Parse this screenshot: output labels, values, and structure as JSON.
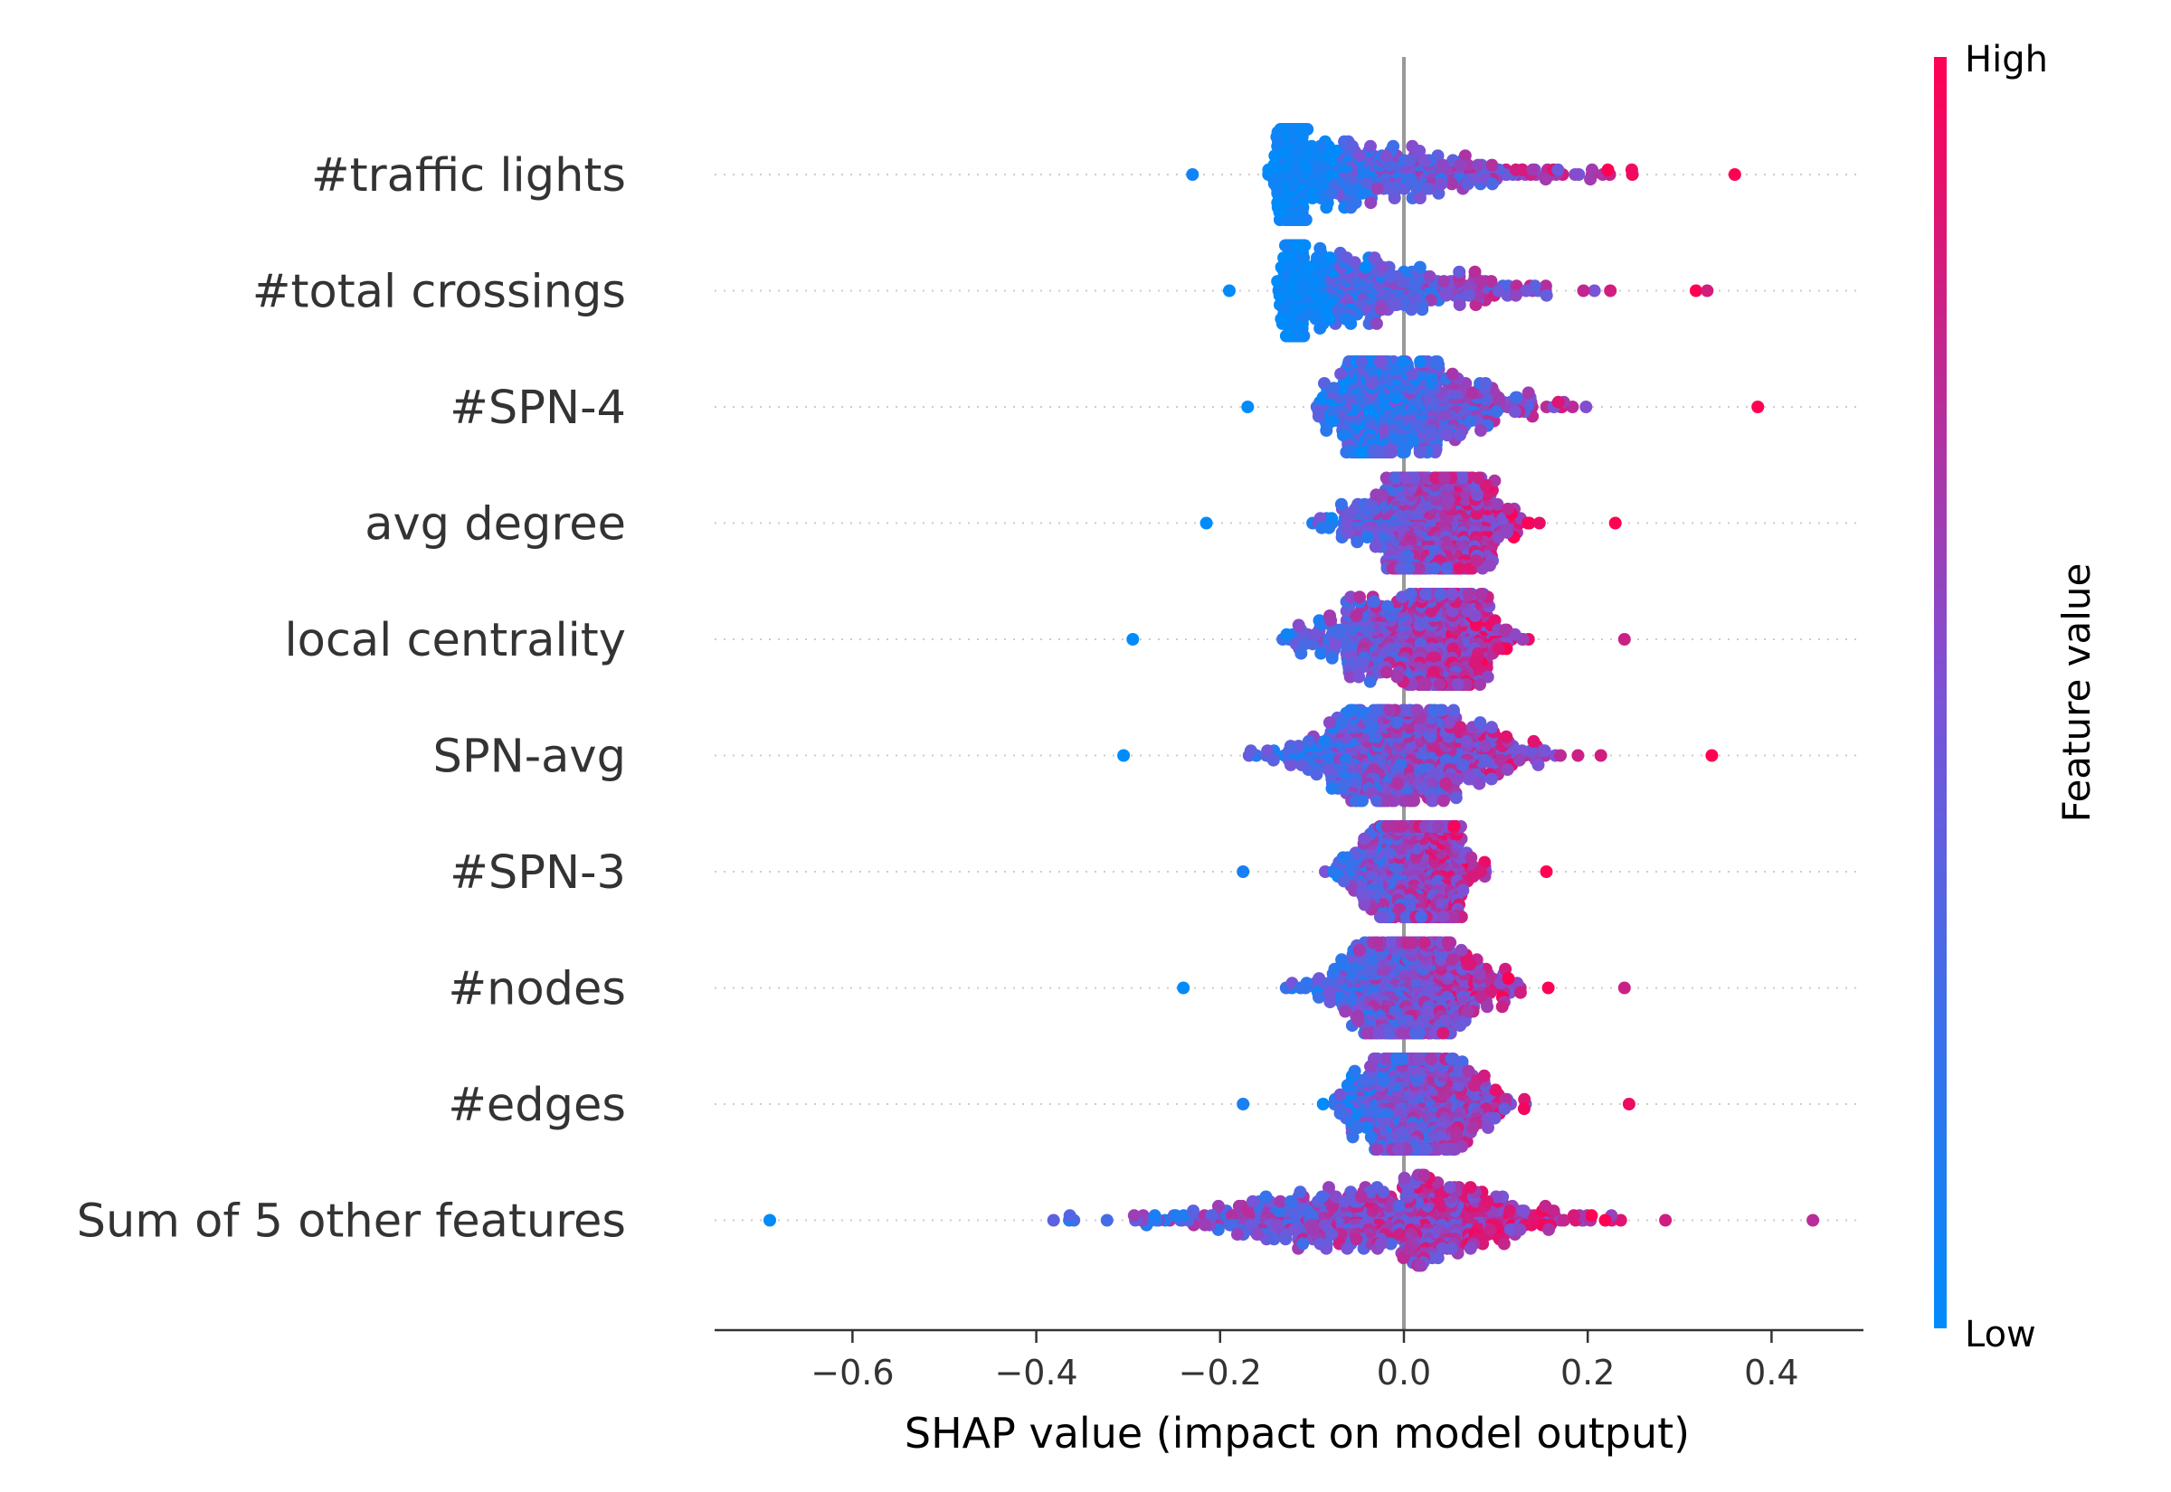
{
  "chart_data": {
    "type": "scatter",
    "subtype": "beeswarm",
    "title": "",
    "xlabel": "SHAP value (impact on model output)",
    "ylabel": "",
    "xlim": [
      -0.75,
      0.5
    ],
    "xticks": [
      -0.6,
      -0.4,
      -0.2,
      0.0,
      0.2,
      0.4
    ],
    "xtick_labels": [
      "−0.6",
      "−0.4",
      "−0.2",
      "0.0",
      "0.2",
      "0.4"
    ],
    "grid": false,
    "zero_line": 0.0,
    "features": [
      {
        "name": "#traffic lights",
        "min": -0.23,
        "max": 0.36,
        "mode": -0.11,
        "spread": 0.3,
        "shape": "left-heavy"
      },
      {
        "name": "#total crossings",
        "min": -0.19,
        "max": 0.33,
        "mode": -0.11,
        "spread": 0.3,
        "shape": "left-heavy"
      },
      {
        "name": "#SPN-4",
        "min": -0.17,
        "max": 0.385,
        "mode": -0.02,
        "spread": 0.3,
        "shape": "center"
      },
      {
        "name": "avg degree",
        "min": -0.215,
        "max": 0.23,
        "mode": 0.04,
        "spread": 0.3,
        "shape": "center"
      },
      {
        "name": "local centrality",
        "min": -0.295,
        "max": 0.24,
        "mode": 0.03,
        "spread": 0.3,
        "shape": "center"
      },
      {
        "name": "SPN-avg",
        "min": -0.305,
        "max": 0.335,
        "mode": 0.0,
        "spread": 0.3,
        "shape": "center"
      },
      {
        "name": "#SPN-3",
        "min": -0.175,
        "max": 0.155,
        "mode": 0.02,
        "spread": 0.3,
        "shape": "center"
      },
      {
        "name": "#nodes",
        "min": -0.24,
        "max": 0.24,
        "mode": 0.01,
        "spread": 0.3,
        "shape": "center"
      },
      {
        "name": "#edges",
        "min": -0.175,
        "max": 0.245,
        "mode": 0.015,
        "spread": 0.3,
        "shape": "center"
      },
      {
        "name": "Sum of 5 other features",
        "min": -0.69,
        "max": 0.445,
        "mode": 0.0,
        "spread": 0.3,
        "shape": "center"
      }
    ],
    "colorbar": {
      "label": "Feature value",
      "high_label": "High",
      "low_label": "Low",
      "low_color": "#008bfb",
      "mid_color": "#7c52d6",
      "high_color": "#ff0052"
    },
    "colors": {
      "axis": "#333333",
      "zero_line": "#999999",
      "row_dots": "#cccccc"
    }
  }
}
